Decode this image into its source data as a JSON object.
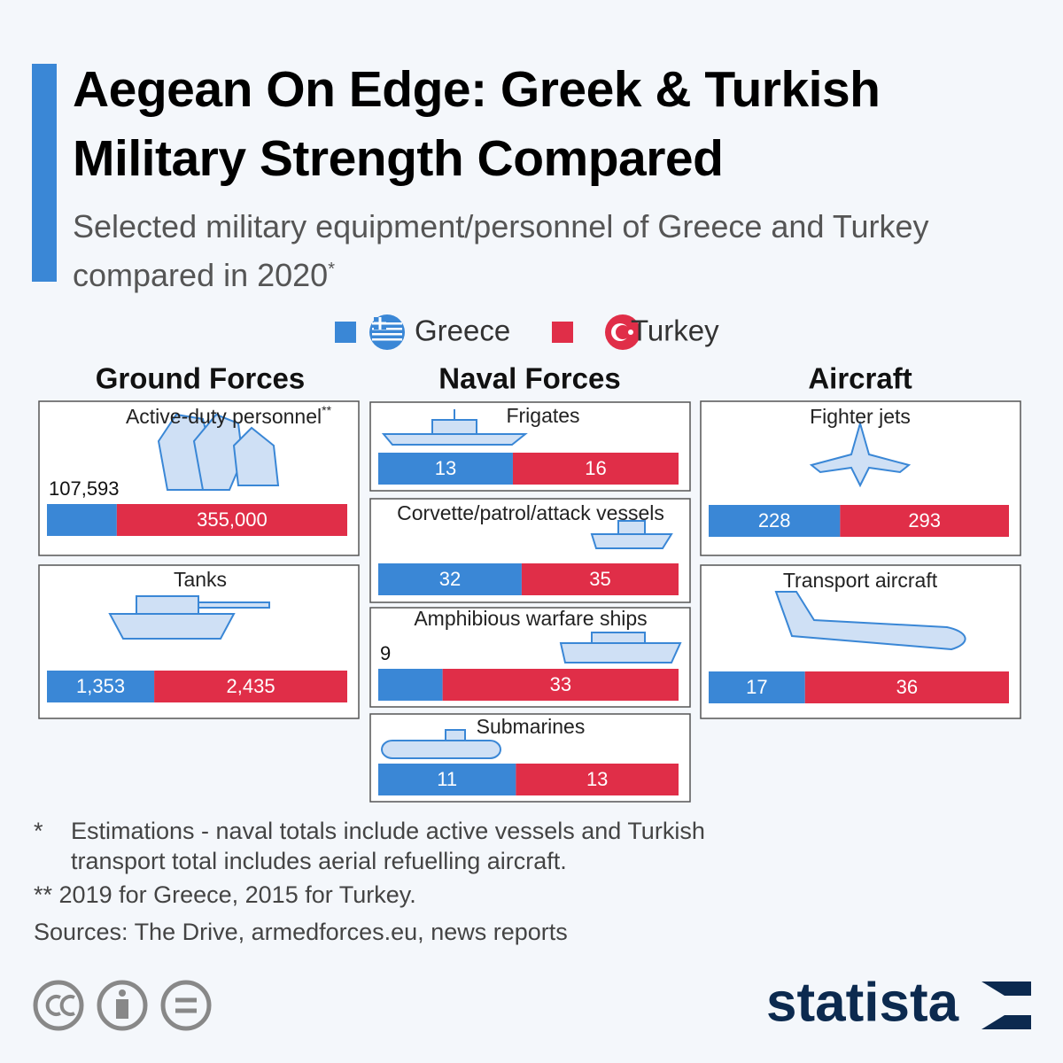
{
  "chart_data": {
    "type": "split-bar",
    "title": "Aegean On Edge: Greek & Turkish Military Strength Compared",
    "subtitle": "Selected military equipment/personnel of Greece and Turkey compared in 2020",
    "subtitle_note": "*",
    "series": [
      {
        "name": "Greece",
        "color": "#3a87d6"
      },
      {
        "name": "Turkey",
        "color": "#e02e48"
      }
    ],
    "groups": [
      {
        "title": "Ground Forces",
        "panels": [
          {
            "label": "Active-duty personnel",
            "note": "**",
            "values": [
              107593,
              355000
            ],
            "value_labels": [
              "107,593",
              "355,000"
            ]
          },
          {
            "label": "Tanks",
            "values": [
              1353,
              2435
            ],
            "value_labels": [
              "1,353",
              "2,435"
            ]
          }
        ]
      },
      {
        "title": "Naval Forces",
        "panels": [
          {
            "label": "Frigates",
            "values": [
              13,
              16
            ]
          },
          {
            "label": "Corvette/patrol/attack vessels",
            "values": [
              32,
              35
            ]
          },
          {
            "label": "Amphibious warfare ships",
            "values": [
              9,
              33
            ]
          },
          {
            "label": "Submarines",
            "values": [
              11,
              13
            ]
          }
        ]
      },
      {
        "title": "Aircraft",
        "panels": [
          {
            "label": "Fighter jets",
            "values": [
              228,
              293
            ]
          },
          {
            "label": "Transport aircraft",
            "values": [
              17,
              36
            ]
          }
        ]
      }
    ],
    "footnotes": [
      {
        "mark": "*",
        "text": "Estimations - naval totals include active vessels and Turkish transport total includes aerial refuelling aircraft."
      },
      {
        "mark": "**",
        "text": "2019 for Greece, 2015 for Turkey."
      }
    ],
    "source": "Sources: The Drive, armedforces.eu, news reports",
    "brand": "statista"
  }
}
